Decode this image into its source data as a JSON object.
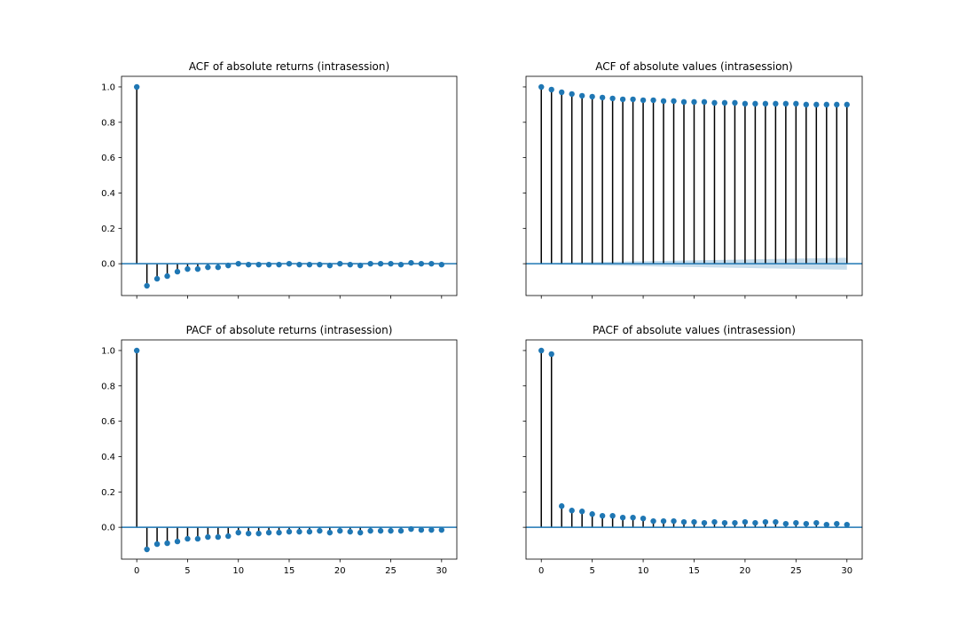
{
  "chart_data": [
    {
      "type": "stem",
      "title": "ACF of absolute returns (intrasession)",
      "xlabel": "",
      "ylabel": "",
      "xlim": [
        -1.5,
        31.5
      ],
      "ylim": [
        -0.18,
        1.06
      ],
      "x_ticks": [
        0,
        5,
        10,
        15,
        20,
        25,
        30
      ],
      "x_tick_labels": [],
      "y_ticks": [
        0.0,
        0.2,
        0.4,
        0.6,
        0.8,
        1.0
      ],
      "y_tick_labels": [
        "0.0",
        "0.2",
        "0.4",
        "0.6",
        "0.8",
        "1.0"
      ],
      "x": [
        0,
        1,
        2,
        3,
        4,
        5,
        6,
        7,
        8,
        9,
        10,
        11,
        12,
        13,
        14,
        15,
        16,
        17,
        18,
        19,
        20,
        21,
        22,
        23,
        24,
        25,
        26,
        27,
        28,
        29,
        30
      ],
      "values": [
        1.0,
        -0.125,
        -0.085,
        -0.07,
        -0.045,
        -0.03,
        -0.03,
        -0.02,
        -0.02,
        -0.01,
        0.0,
        -0.005,
        -0.005,
        -0.005,
        -0.005,
        0.0,
        -0.005,
        -0.005,
        -0.005,
        -0.01,
        0.0,
        -0.005,
        -0.01,
        0.0,
        0.0,
        0.0,
        -0.005,
        0.005,
        0.0,
        0.0,
        -0.005
      ],
      "confidence_band": [
        0.004,
        0.004,
        0.004,
        0.004,
        0.004,
        0.004,
        0.004,
        0.004,
        0.004,
        0.004,
        0.004,
        0.004,
        0.004,
        0.004,
        0.004,
        0.004,
        0.004,
        0.004,
        0.004,
        0.004,
        0.004,
        0.004,
        0.004,
        0.004,
        0.004,
        0.004,
        0.004,
        0.004,
        0.004,
        0.004,
        0.004
      ]
    },
    {
      "type": "stem",
      "title": "ACF of absolute values (intrasession)",
      "xlabel": "",
      "ylabel": "",
      "xlim": [
        -1.5,
        31.5
      ],
      "ylim": [
        -0.18,
        1.06
      ],
      "x_ticks": [
        0,
        5,
        10,
        15,
        20,
        25,
        30
      ],
      "x_tick_labels": [],
      "y_ticks": [
        0.0,
        0.2,
        0.4,
        0.6,
        0.8,
        1.0
      ],
      "y_tick_labels": [],
      "x": [
        0,
        1,
        2,
        3,
        4,
        5,
        6,
        7,
        8,
        9,
        10,
        11,
        12,
        13,
        14,
        15,
        16,
        17,
        18,
        19,
        20,
        21,
        22,
        23,
        24,
        25,
        26,
        27,
        28,
        29,
        30
      ],
      "values": [
        1.0,
        0.985,
        0.97,
        0.96,
        0.95,
        0.945,
        0.94,
        0.935,
        0.93,
        0.93,
        0.925,
        0.925,
        0.92,
        0.92,
        0.915,
        0.915,
        0.915,
        0.91,
        0.91,
        0.91,
        0.905,
        0.905,
        0.905,
        0.905,
        0.905,
        0.905,
        0.9,
        0.9,
        0.9,
        0.9,
        0.9
      ],
      "confidence_band": [
        0.004,
        0.004,
        0.006,
        0.007,
        0.008,
        0.009,
        0.01,
        0.011,
        0.012,
        0.013,
        0.014,
        0.015,
        0.016,
        0.017,
        0.018,
        0.019,
        0.02,
        0.021,
        0.022,
        0.023,
        0.024,
        0.025,
        0.026,
        0.027,
        0.028,
        0.029,
        0.03,
        0.031,
        0.032,
        0.033,
        0.034
      ]
    },
    {
      "type": "stem",
      "title": "PACF of absolute returns (intrasession)",
      "xlabel": "",
      "ylabel": "",
      "xlim": [
        -1.5,
        31.5
      ],
      "ylim": [
        -0.18,
        1.06
      ],
      "x_ticks": [
        0,
        5,
        10,
        15,
        20,
        25,
        30
      ],
      "x_tick_labels": [
        "0",
        "5",
        "10",
        "15",
        "20",
        "25",
        "30"
      ],
      "y_ticks": [
        0.0,
        0.2,
        0.4,
        0.6,
        0.8,
        1.0
      ],
      "y_tick_labels": [
        "0.0",
        "0.2",
        "0.4",
        "0.6",
        "0.8",
        "1.0"
      ],
      "x": [
        0,
        1,
        2,
        3,
        4,
        5,
        6,
        7,
        8,
        9,
        10,
        11,
        12,
        13,
        14,
        15,
        16,
        17,
        18,
        19,
        20,
        21,
        22,
        23,
        24,
        25,
        26,
        27,
        28,
        29,
        30
      ],
      "values": [
        1.0,
        -0.125,
        -0.095,
        -0.09,
        -0.08,
        -0.065,
        -0.065,
        -0.055,
        -0.055,
        -0.05,
        -0.03,
        -0.035,
        -0.035,
        -0.03,
        -0.03,
        -0.025,
        -0.025,
        -0.025,
        -0.02,
        -0.03,
        -0.02,
        -0.025,
        -0.03,
        -0.02,
        -0.02,
        -0.02,
        -0.02,
        -0.01,
        -0.015,
        -0.015,
        -0.015
      ],
      "confidence_band": [
        0.004,
        0.004,
        0.004,
        0.004,
        0.004,
        0.004,
        0.004,
        0.004,
        0.004,
        0.004,
        0.004,
        0.004,
        0.004,
        0.004,
        0.004,
        0.004,
        0.004,
        0.004,
        0.004,
        0.004,
        0.004,
        0.004,
        0.004,
        0.004,
        0.004,
        0.004,
        0.004,
        0.004,
        0.004,
        0.004,
        0.004
      ]
    },
    {
      "type": "stem",
      "title": "PACF of absolute values (intrasession)",
      "xlabel": "",
      "ylabel": "",
      "xlim": [
        -1.5,
        31.5
      ],
      "ylim": [
        -0.18,
        1.06
      ],
      "x_ticks": [
        0,
        5,
        10,
        15,
        20,
        25,
        30
      ],
      "x_tick_labels": [
        "0",
        "5",
        "10",
        "15",
        "20",
        "25",
        "30"
      ],
      "y_ticks": [
        0.0,
        0.2,
        0.4,
        0.6,
        0.8,
        1.0
      ],
      "y_tick_labels": [],
      "x": [
        0,
        1,
        2,
        3,
        4,
        5,
        6,
        7,
        8,
        9,
        10,
        11,
        12,
        13,
        14,
        15,
        16,
        17,
        18,
        19,
        20,
        21,
        22,
        23,
        24,
        25,
        26,
        27,
        28,
        29,
        30
      ],
      "values": [
        1.0,
        0.98,
        0.12,
        0.095,
        0.09,
        0.075,
        0.065,
        0.065,
        0.055,
        0.055,
        0.05,
        0.035,
        0.035,
        0.035,
        0.03,
        0.03,
        0.025,
        0.03,
        0.025,
        0.025,
        0.03,
        0.025,
        0.03,
        0.03,
        0.02,
        0.025,
        0.02,
        0.025,
        0.015,
        0.02,
        0.015
      ],
      "confidence_band": [
        0.004,
        0.004,
        0.004,
        0.004,
        0.004,
        0.004,
        0.004,
        0.004,
        0.004,
        0.004,
        0.004,
        0.004,
        0.004,
        0.004,
        0.004,
        0.004,
        0.004,
        0.004,
        0.004,
        0.004,
        0.004,
        0.004,
        0.004,
        0.004,
        0.004,
        0.004,
        0.004,
        0.004,
        0.004,
        0.004,
        0.004
      ]
    }
  ],
  "colors": {
    "marker": "#1f77b4",
    "stem": "#000000",
    "zero_line": "#1f77b4",
    "band": "#1f77b4"
  }
}
